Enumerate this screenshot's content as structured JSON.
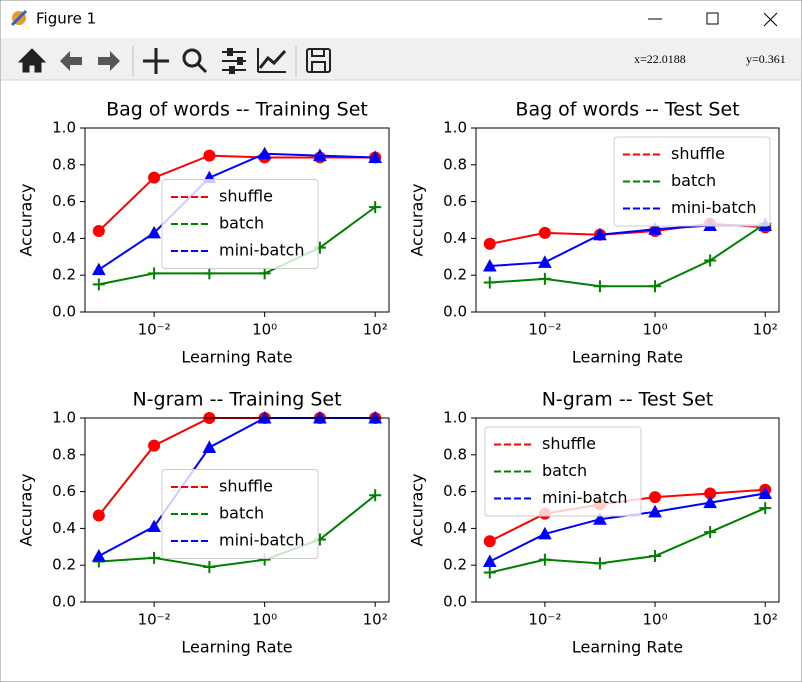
{
  "window": {
    "title": "Figure 1",
    "coord_x": "x=22.0188",
    "coord_y": "y=0.361"
  },
  "chart_data": [
    {
      "type": "line",
      "title": "Bag of words -- Training Set",
      "xlabel": "Learning Rate",
      "ylabel": "Accuracy",
      "xscale": "log",
      "x": [
        0.001,
        0.01,
        0.1,
        1,
        10,
        100
      ],
      "xlim": [
        0.000562,
        177.8
      ],
      "ylim": [
        0,
        1
      ],
      "xticks": [
        {
          "value": 0.01,
          "label": "10⁻²"
        },
        {
          "value": 1,
          "label": "10⁰"
        },
        {
          "value": 100,
          "label": "10²"
        }
      ],
      "yticks": [
        {
          "value": 0,
          "label": "0.0"
        },
        {
          "value": 0.2,
          "label": "0.2"
        },
        {
          "value": 0.4,
          "label": "0.4"
        },
        {
          "value": 0.6,
          "label": "0.6"
        },
        {
          "value": 0.8,
          "label": "0.8"
        },
        {
          "value": 1,
          "label": "1.0"
        }
      ],
      "legend": "center",
      "series": [
        {
          "name": "shuffle",
          "color": "#ff0000",
          "marker": "o",
          "values": [
            0.44,
            0.73,
            0.85,
            0.84,
            0.84,
            0.84
          ]
        },
        {
          "name": "batch",
          "color": "#008000",
          "marker": "+",
          "values": [
            0.15,
            0.21,
            0.21,
            0.21,
            0.35,
            0.57
          ]
        },
        {
          "name": "mini-batch",
          "color": "#0000ff",
          "marker": "^",
          "values": [
            0.23,
            0.43,
            0.73,
            0.86,
            0.85,
            0.84
          ]
        }
      ]
    },
    {
      "type": "line",
      "title": "Bag of words -- Test Set",
      "xlabel": "Learning Rate",
      "ylabel": "Accuracy",
      "xscale": "log",
      "x": [
        0.001,
        0.01,
        0.1,
        1,
        10,
        100
      ],
      "xlim": [
        0.000562,
        177.8
      ],
      "ylim": [
        0,
        1
      ],
      "xticks": [
        {
          "value": 0.01,
          "label": "10⁻²"
        },
        {
          "value": 1,
          "label": "10⁰"
        },
        {
          "value": 100,
          "label": "10²"
        }
      ],
      "yticks": [
        {
          "value": 0,
          "label": "0.0"
        },
        {
          "value": 0.2,
          "label": "0.2"
        },
        {
          "value": 0.4,
          "label": "0.4"
        },
        {
          "value": 0.6,
          "label": "0.6"
        },
        {
          "value": 0.8,
          "label": "0.8"
        },
        {
          "value": 1,
          "label": "1.0"
        }
      ],
      "legend": "upper right",
      "series": [
        {
          "name": "shuffle",
          "color": "#ff0000",
          "marker": "o",
          "values": [
            0.37,
            0.43,
            0.42,
            0.44,
            0.48,
            0.46
          ]
        },
        {
          "name": "batch",
          "color": "#008000",
          "marker": "+",
          "values": [
            0.16,
            0.18,
            0.14,
            0.14,
            0.28,
            0.48
          ]
        },
        {
          "name": "mini-batch",
          "color": "#0000ff",
          "marker": "^",
          "values": [
            0.25,
            0.27,
            0.42,
            0.45,
            0.47,
            0.47
          ]
        }
      ]
    },
    {
      "type": "line",
      "title": "N-gram -- Training Set",
      "xlabel": "Learning Rate",
      "ylabel": "Accuracy",
      "xscale": "log",
      "x": [
        0.001,
        0.01,
        0.1,
        1,
        10,
        100
      ],
      "xlim": [
        0.000562,
        177.8
      ],
      "ylim": [
        0,
        1
      ],
      "xticks": [
        {
          "value": 0.01,
          "label": "10⁻²"
        },
        {
          "value": 1,
          "label": "10⁰"
        },
        {
          "value": 100,
          "label": "10²"
        }
      ],
      "yticks": [
        {
          "value": 0,
          "label": "0.0"
        },
        {
          "value": 0.2,
          "label": "0.2"
        },
        {
          "value": 0.4,
          "label": "0.4"
        },
        {
          "value": 0.6,
          "label": "0.6"
        },
        {
          "value": 0.8,
          "label": "0.8"
        },
        {
          "value": 1,
          "label": "1.0"
        }
      ],
      "legend": "center",
      "series": [
        {
          "name": "shuffle",
          "color": "#ff0000",
          "marker": "o",
          "values": [
            0.47,
            0.85,
            1.0,
            1.0,
            1.0,
            1.0
          ]
        },
        {
          "name": "batch",
          "color": "#008000",
          "marker": "+",
          "values": [
            0.22,
            0.24,
            0.19,
            0.23,
            0.34,
            0.58
          ]
        },
        {
          "name": "mini-batch",
          "color": "#0000ff",
          "marker": "^",
          "values": [
            0.25,
            0.41,
            0.84,
            1.0,
            1.0,
            1.0
          ]
        }
      ]
    },
    {
      "type": "line",
      "title": "N-gram -- Test Set",
      "xlabel": "Learning Rate",
      "ylabel": "Accuracy",
      "xscale": "log",
      "x": [
        0.001,
        0.01,
        0.1,
        1,
        10,
        100
      ],
      "xlim": [
        0.000562,
        177.8
      ],
      "ylim": [
        0,
        1
      ],
      "xticks": [
        {
          "value": 0.01,
          "label": "10⁻²"
        },
        {
          "value": 1,
          "label": "10⁰"
        },
        {
          "value": 100,
          "label": "10²"
        }
      ],
      "yticks": [
        {
          "value": 0,
          "label": "0.0"
        },
        {
          "value": 0.2,
          "label": "0.2"
        },
        {
          "value": 0.4,
          "label": "0.4"
        },
        {
          "value": 0.6,
          "label": "0.6"
        },
        {
          "value": 0.8,
          "label": "0.8"
        },
        {
          "value": 1,
          "label": "1.0"
        }
      ],
      "legend": "upper left",
      "series": [
        {
          "name": "shuffle",
          "color": "#ff0000",
          "marker": "o",
          "values": [
            0.33,
            0.48,
            0.53,
            0.57,
            0.59,
            0.61
          ]
        },
        {
          "name": "batch",
          "color": "#008000",
          "marker": "+",
          "values": [
            0.16,
            0.23,
            0.21,
            0.25,
            0.38,
            0.51
          ]
        },
        {
          "name": "mini-batch",
          "color": "#0000ff",
          "marker": "^",
          "values": [
            0.22,
            0.37,
            0.45,
            0.49,
            0.54,
            0.59
          ]
        }
      ]
    }
  ]
}
